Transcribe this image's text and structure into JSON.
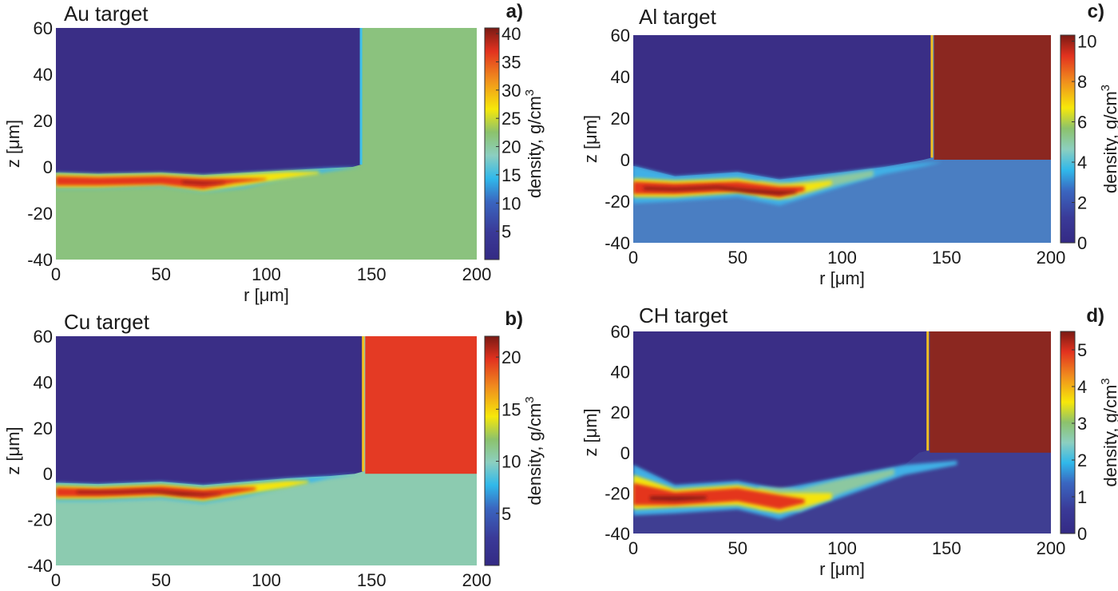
{
  "chart_data": [
    {
      "type": "heatmap",
      "panel_label": "a)",
      "title": "Au target",
      "xlabel": "r [μm]",
      "ylabel": "z [μm]",
      "xlim": [
        0,
        200
      ],
      "ylim": [
        -40,
        60
      ],
      "xticks": [
        "0",
        "50",
        "100",
        "150",
        "200"
      ],
      "yticks": [
        "60",
        "40",
        "20",
        "0",
        "-20",
        "-40"
      ],
      "colorbar": {
        "label": "density, g/cm",
        "label_sup": "3",
        "range": [
          0,
          41
        ],
        "ticks": [
          "5",
          "10",
          "15",
          "20",
          "25",
          "30",
          "35",
          "40"
        ]
      },
      "regions": {
        "vacuum_color": "#3a2e86",
        "bulk_color": "#8bc27e",
        "solid_color": "#8bc27e",
        "wall_r": 145,
        "edge_color": "#3fc0ec"
      },
      "layer_bands": [
        {
          "color": "#3fb8e8",
          "r": [
            0,
            20,
            50,
            70,
            90,
            110,
            130,
            145
          ],
          "top": [
            -2.5,
            -3,
            -2.5,
            -3.5,
            -2.5,
            -1.5,
            -0.5,
            0
          ],
          "bot": [
            -9.5,
            -9.5,
            -8.5,
            -11,
            -9,
            -5,
            -2,
            0
          ]
        },
        {
          "color": "#f4e40c",
          "r": [
            0,
            20,
            50,
            70,
            90,
            110,
            125
          ],
          "top": [
            -3,
            -3.5,
            -3,
            -4,
            -3,
            -2,
            -2
          ],
          "bot": [
            -9,
            -9,
            -8,
            -10.5,
            -8,
            -5,
            -3
          ]
        },
        {
          "color": "#e4351f",
          "r": [
            0,
            20,
            50,
            70,
            85,
            100
          ],
          "top": [
            -4,
            -4.5,
            -4,
            -5,
            -5,
            -5
          ],
          "bot": [
            -8,
            -8,
            -7.5,
            -9.5,
            -7,
            -5.5
          ]
        },
        {
          "color": "#8c1a14",
          "r": [
            60,
            70,
            80
          ],
          "top": [
            -6,
            -6.5,
            -6.5
          ],
          "bot": [
            -7,
            -7.5,
            -7
          ]
        }
      ]
    },
    {
      "type": "heatmap",
      "panel_label": "b)",
      "title": "Cu target",
      "xlabel": "r [μm]",
      "ylabel": "z [μm]",
      "xlim": [
        0,
        200
      ],
      "ylim": [
        -40,
        60
      ],
      "xticks": [
        "0",
        "50",
        "100",
        "150",
        "200"
      ],
      "yticks": [
        "60",
        "40",
        "20",
        "0",
        "-20",
        "-40"
      ],
      "colorbar": {
        "label": "density, g/cm",
        "label_sup": "3",
        "range": [
          0,
          22
        ],
        "ticks": [
          "5",
          "10",
          "15",
          "20"
        ]
      },
      "regions": {
        "vacuum_color": "#3a2e86",
        "bulk_color": "#8ccbb0",
        "solid_color": "#e43a24",
        "wall_r": 146,
        "edge_color": "#f4c020"
      },
      "layer_bands": [
        {
          "color": "#3fb8e8",
          "r": [
            0,
            20,
            50,
            70,
            90,
            110,
            130,
            145
          ],
          "top": [
            -4,
            -4.5,
            -3.5,
            -5,
            -3.5,
            -2,
            -1,
            0
          ],
          "bot": [
            -12,
            -12,
            -11,
            -13,
            -10,
            -6,
            -2,
            0
          ]
        },
        {
          "color": "#f4e40c",
          "r": [
            0,
            20,
            50,
            70,
            90,
            110,
            120
          ],
          "top": [
            -5,
            -5.5,
            -4.5,
            -6,
            -4.5,
            -3,
            -3
          ],
          "bot": [
            -11,
            -11,
            -10,
            -12,
            -9,
            -6,
            -4
          ]
        },
        {
          "color": "#e4351f",
          "r": [
            0,
            20,
            50,
            70,
            85,
            95
          ],
          "top": [
            -6,
            -6.5,
            -5.5,
            -7,
            -6,
            -6
          ],
          "bot": [
            -10,
            -10,
            -9,
            -11,
            -8.5,
            -7
          ]
        },
        {
          "color": "#8c1a14",
          "r": [
            10,
            20,
            30,
            45,
            60,
            70,
            78
          ],
          "top": [
            -7.5,
            -7.5,
            -7.5,
            -7,
            -8,
            -8.5,
            -8.5
          ],
          "bot": [
            -8.5,
            -8.5,
            -8.5,
            -8,
            -9.5,
            -9.5,
            -9
          ]
        }
      ]
    },
    {
      "type": "heatmap",
      "panel_label": "c)",
      "title": "Al target",
      "xlabel": "r [μm]",
      "ylabel": "z [μm]",
      "xlim": [
        0,
        200
      ],
      "ylim": [
        -40,
        60
      ],
      "xticks": [
        "0",
        "50",
        "100",
        "150",
        "200"
      ],
      "yticks": [
        "60",
        "40",
        "20",
        "0",
        "-20",
        "-40"
      ],
      "colorbar": {
        "label": "density, g/cm",
        "label_sup": "3",
        "range": [
          0,
          10.3
        ],
        "ticks": [
          "0",
          "2",
          "4",
          "6",
          "8",
          "10"
        ]
      },
      "regions": {
        "vacuum_color": "#3a2e86",
        "bulk_color": "#4a7ec2",
        "solid_color": "#8b2720",
        "wall_r": 143,
        "edge_color": "#f4c020"
      },
      "layer_bands": [
        {
          "color": "#3fb0e6",
          "r": [
            0,
            20,
            50,
            70,
            100,
            120,
            140,
            148
          ],
          "top": [
            -3,
            -8,
            -6,
            -9.5,
            -6,
            -3.5,
            -1.5,
            -1
          ],
          "bot": [
            -21,
            -20,
            -18,
            -22,
            -13,
            -7,
            -3,
            -1
          ]
        },
        {
          "color": "#8cc8a0",
          "r": [
            60,
            75,
            95,
            115
          ],
          "top": [
            -10,
            -11,
            -8,
            -5
          ],
          "bot": [
            -18,
            -19,
            -13,
            -8
          ]
        },
        {
          "color": "#f4e40c",
          "r": [
            0,
            20,
            50,
            70,
            85,
            95
          ],
          "top": [
            -9,
            -10,
            -9,
            -12,
            -11,
            -10
          ],
          "bot": [
            -18,
            -18,
            -16,
            -19,
            -15,
            -12
          ]
        },
        {
          "color": "#e4351f",
          "r": [
            0,
            20,
            50,
            70,
            82
          ],
          "top": [
            -10.5,
            -11.5,
            -10.5,
            -13,
            -13
          ],
          "bot": [
            -16.5,
            -16.5,
            -15,
            -18,
            -15
          ]
        },
        {
          "color": "#8c1a14",
          "r": [
            5,
            20,
            40,
            55,
            70,
            78
          ],
          "top": [
            -13,
            -13.5,
            -12.5,
            -14,
            -15,
            -15
          ],
          "bot": [
            -14.5,
            -15,
            -14,
            -16,
            -17,
            -16
          ]
        }
      ]
    },
    {
      "type": "heatmap",
      "panel_label": "d)",
      "title": "CH target",
      "xlabel": "r [μm]",
      "ylabel": "z [μm]",
      "xlim": [
        0,
        200
      ],
      "ylim": [
        -40,
        60
      ],
      "xticks": [
        "0",
        "50",
        "100",
        "150",
        "200"
      ],
      "yticks": [
        "60",
        "40",
        "20",
        "0",
        "-20",
        "-40"
      ],
      "colorbar": {
        "label": "density, g/cm",
        "label_sup": "3",
        "range": [
          0,
          5.5
        ],
        "ticks": [
          "0",
          "1",
          "2",
          "3",
          "4",
          "5"
        ]
      },
      "regions": {
        "vacuum_color": "#3a2e86",
        "bulk_color": "#3f3e92",
        "solid_color": "#8b2720",
        "wall_r": 141,
        "edge_color": "#f4c020"
      },
      "layer_bands": [
        {
          "color": "#3fb0e6",
          "r": [
            0,
            20,
            50,
            70,
            100,
            130,
            155
          ],
          "top": [
            -6,
            -16,
            -14,
            -18,
            -12,
            -6,
            -4
          ],
          "bot": [
            -31,
            -30,
            -28,
            -33,
            -22,
            -11,
            -6
          ]
        },
        {
          "color": "#8cc8a0",
          "r": [
            60,
            80,
            100,
            125
          ],
          "top": [
            -17,
            -18,
            -13,
            -8
          ],
          "bot": [
            -28,
            -29,
            -20,
            -11
          ]
        },
        {
          "color": "#f4e40c",
          "r": [
            0,
            20,
            50,
            70,
            85,
            95
          ],
          "top": [
            -11,
            -18,
            -16,
            -20,
            -20,
            -20
          ],
          "bot": [
            -28,
            -27,
            -26,
            -30,
            -26,
            -23
          ]
        },
        {
          "color": "#e4351f",
          "r": [
            0,
            20,
            50,
            70,
            82
          ],
          "top": [
            -15,
            -19.5,
            -17.5,
            -21,
            -23
          ],
          "bot": [
            -26,
            -26,
            -24,
            -28,
            -25
          ]
        },
        {
          "color": "#8c1a14",
          "r": [
            8,
            20,
            35
          ],
          "top": [
            -21.5,
            -21.5,
            -21.5
          ],
          "bot": [
            -23.5,
            -24,
            -23
          ]
        }
      ]
    }
  ]
}
